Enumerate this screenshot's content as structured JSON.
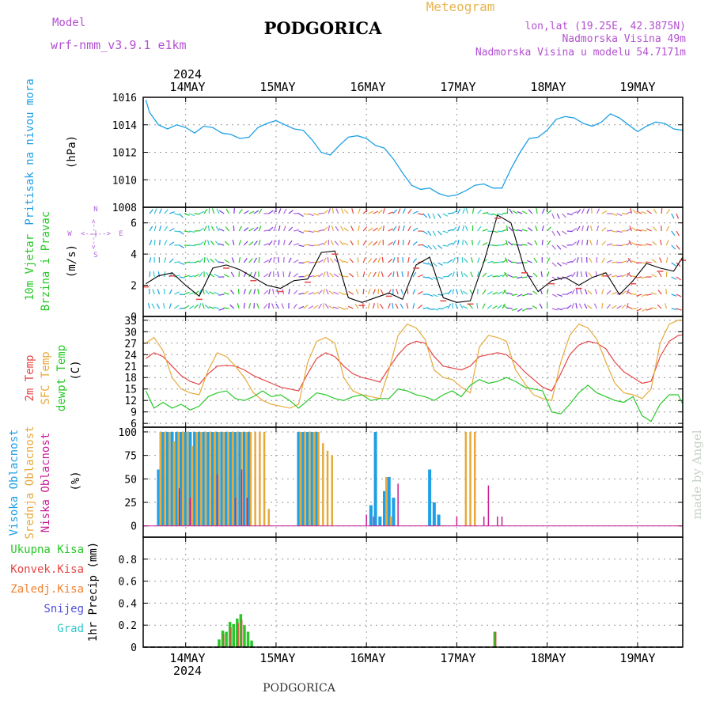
{
  "header": {
    "model_label": "Model",
    "model_name": "wrf-nmm_v3.9.1 e1km",
    "title": "PODGORICA",
    "subtitle": "Meteogram",
    "lonlat": "lon,lat (19.25E, 42.3875N)",
    "elevation": "Nadmorska Visina 49m",
    "model_elevation": "Nadmorska Visina u modelu 54.7171m",
    "year_top": "2024",
    "year_bottom": "2024",
    "footer_station": "PODGORICA",
    "credit": "made by Angel"
  },
  "colors": {
    "pressure": "#1ea0e6",
    "temp2m": "#e64646",
    "sfc": "#e6aa3c",
    "dewpt": "#28c828",
    "high_cloud": "#1ea0e6",
    "mid_cloud": "#e6aa3c",
    "low_cloud": "#c81e96",
    "total_precip": "#28c828",
    "conv_precip": "#e64646",
    "frozen_precip": "#f08232",
    "snow": "#5050dc",
    "hail": "#32c8c8",
    "wind_label": "#28c828",
    "wind_compass": "#b464dc",
    "header_purple": "#b450d2",
    "meteogram_orange": "#e6b450"
  },
  "chart_data": [
    {
      "type": "line",
      "panel": "pressure",
      "ylabel_left": "Pritisak na nivou mora",
      "unit": "(hPa)",
      "ylim": [
        1008,
        1016
      ],
      "yticks": [
        "1016",
        "1014",
        "1012",
        "1010",
        "1008"
      ],
      "grid": true,
      "x_ticks": [
        "14MAY",
        "15MAY",
        "16MAY",
        "17MAY",
        "18MAY",
        "19MAY"
      ],
      "series": [
        {
          "x": [
            13.56,
            13.6,
            13.7,
            13.8,
            13.9,
            14.0,
            14.1,
            14.2,
            14.3,
            14.4,
            14.5,
            14.6,
            14.7,
            14.8,
            14.9,
            15.0,
            15.1,
            15.2,
            15.3,
            15.4,
            15.5,
            15.6,
            15.7,
            15.8,
            15.9,
            16.0,
            16.1,
            16.2,
            16.3,
            16.4,
            16.5,
            16.6,
            16.7,
            16.8,
            16.9,
            17.0,
            17.1,
            17.2,
            17.3,
            17.4,
            17.5,
            17.6,
            17.7,
            17.8,
            17.9,
            18.0,
            18.1,
            18.2,
            18.3,
            18.4,
            18.5,
            18.6,
            18.7,
            18.8,
            18.9,
            19.0,
            19.1,
            19.2,
            19.3,
            19.4,
            19.5
          ],
          "values": [
            1015.8,
            1014.9,
            1014.0,
            1013.7,
            1014.0,
            1013.8,
            1013.4,
            1013.9,
            1013.8,
            1013.4,
            1013.3,
            1013.0,
            1013.1,
            1013.8,
            1014.1,
            1014.3,
            1014.0,
            1013.7,
            1013.6,
            1012.9,
            1012.0,
            1011.8,
            1012.5,
            1013.1,
            1013.2,
            1013.0,
            1012.5,
            1012.3,
            1011.5,
            1010.5,
            1009.6,
            1009.3,
            1009.4,
            1009.0,
            1008.8,
            1008.9,
            1009.2,
            1009.6,
            1009.7,
            1009.4,
            1009.4,
            1010.8,
            1012.0,
            1013.0,
            1013.1,
            1013.6,
            1014.4,
            1014.6,
            1014.5,
            1014.1,
            1013.9,
            1014.2,
            1014.8,
            1014.5,
            1014.0,
            1013.5,
            1013.9,
            1014.2,
            1014.1,
            1013.7,
            1013.6
          ]
        }
      ]
    },
    {
      "type": "line",
      "panel": "wind",
      "ylabel_left": [
        "10m Vjetar",
        "Brzina i Pravac"
      ],
      "unit": "(m/s)",
      "compass": {
        "n": "N",
        "e": "E",
        "w": "W",
        "s": "S",
        "arrows": "<--|-->"
      },
      "ylim": [
        0,
        7
      ],
      "yticks": [
        "6",
        "4",
        "2",
        "0"
      ],
      "grid": true,
      "series": [
        {
          "name": "speed",
          "x": [
            13.56,
            13.7,
            13.85,
            14.0,
            14.15,
            14.3,
            14.45,
            14.6,
            14.75,
            14.9,
            15.05,
            15.2,
            15.35,
            15.5,
            15.65,
            15.8,
            15.95,
            16.1,
            16.25,
            16.4,
            16.55,
            16.7,
            16.85,
            17.0,
            17.15,
            17.3,
            17.45,
            17.6,
            17.75,
            17.9,
            18.05,
            18.2,
            18.35,
            18.5,
            18.65,
            18.8,
            18.95,
            19.1,
            19.25,
            19.4,
            19.5
          ],
          "values": [
            2.1,
            2.6,
            2.8,
            2.0,
            1.3,
            3.1,
            3.3,
            3.0,
            2.5,
            2.0,
            1.8,
            2.3,
            2.4,
            4.1,
            4.2,
            1.2,
            0.9,
            1.2,
            1.5,
            1.1,
            3.3,
            3.8,
            1.2,
            0.9,
            1.0,
            3.5,
            6.5,
            6.0,
            3.0,
            1.6,
            2.3,
            2.5,
            2.0,
            2.5,
            2.8,
            1.4,
            2.3,
            3.4,
            3.1,
            2.9,
            3.8
          ]
        }
      ]
    },
    {
      "type": "line",
      "panel": "temperature",
      "ylabel_left": [
        "2m Temp",
        "SFC Temp",
        "dewpt Temp"
      ],
      "unit": "(C)",
      "ylim": [
        5,
        34
      ],
      "yticks": [
        "33",
        "30",
        "27",
        "24",
        "21",
        "18",
        "15",
        "12",
        "9",
        "6"
      ],
      "grid": true,
      "x": [
        13.56,
        13.65,
        13.75,
        13.85,
        13.95,
        14.05,
        14.15,
        14.25,
        14.35,
        14.45,
        14.55,
        14.65,
        14.75,
        14.85,
        14.95,
        15.05,
        15.15,
        15.25,
        15.35,
        15.45,
        15.55,
        15.65,
        15.75,
        15.85,
        15.95,
        16.05,
        16.15,
        16.25,
        16.35,
        16.45,
        16.55,
        16.65,
        16.75,
        16.85,
        16.95,
        17.05,
        17.15,
        17.25,
        17.35,
        17.45,
        17.55,
        17.65,
        17.75,
        17.85,
        17.95,
        18.05,
        18.15,
        18.25,
        18.35,
        18.45,
        18.55,
        18.65,
        18.75,
        18.85,
        18.95,
        19.05,
        19.15,
        19.25,
        19.35,
        19.45,
        19.5
      ],
      "series": [
        {
          "name": "2m Temp",
          "values": [
            23.0,
            24.5,
            23.5,
            21.0,
            18.5,
            17.0,
            16.2,
            19.0,
            21.0,
            21.2,
            21.0,
            20.0,
            18.5,
            17.5,
            16.5,
            15.5,
            15.0,
            14.5,
            19.0,
            23.0,
            24.5,
            23.5,
            21.0,
            19.0,
            18.0,
            17.5,
            16.8,
            20.5,
            24.0,
            26.5,
            27.5,
            27.0,
            23.5,
            21.0,
            20.5,
            20.0,
            21.0,
            23.5,
            24.0,
            24.5,
            24.0,
            22.0,
            19.5,
            17.5,
            15.5,
            14.5,
            19.0,
            24.0,
            26.5,
            27.5,
            27.0,
            25.5,
            22.0,
            19.5,
            18.0,
            16.5,
            17.0,
            23.5,
            27.5,
            29.0,
            29.2
          ]
        },
        {
          "name": "SFC Temp",
          "values": [
            27.0,
            28.5,
            25.0,
            18.0,
            15.0,
            14.0,
            13.5,
            20.0,
            24.5,
            23.5,
            21.0,
            18.0,
            14.0,
            12.0,
            11.0,
            10.5,
            10.0,
            11.0,
            22.0,
            27.5,
            28.5,
            27.0,
            18.0,
            14.5,
            13.5,
            13.0,
            12.5,
            20.0,
            29.0,
            32.0,
            31.0,
            28.0,
            20.0,
            18.0,
            17.5,
            15.5,
            14.0,
            26.0,
            29.0,
            28.5,
            27.5,
            20.0,
            16.5,
            13.5,
            12.5,
            12.0,
            22.0,
            29.0,
            32.0,
            31.0,
            28.0,
            22.0,
            16.5,
            14.0,
            13.5,
            12.5,
            15.0,
            27.0,
            32.0,
            33.0,
            33.0
          ]
        },
        {
          "name": "dewpt Temp",
          "values": [
            14.5,
            10.0,
            11.5,
            10.0,
            11.0,
            9.5,
            10.5,
            13.0,
            14.0,
            14.5,
            12.5,
            12.0,
            13.0,
            14.5,
            13.0,
            13.5,
            12.0,
            10.0,
            12.0,
            14.0,
            13.5,
            12.5,
            12.0,
            13.0,
            13.5,
            12.0,
            12.5,
            12.5,
            15.0,
            14.5,
            13.5,
            13.0,
            12.0,
            13.5,
            14.5,
            13.0,
            16.0,
            17.5,
            16.5,
            17.0,
            18.0,
            17.0,
            15.5,
            15.0,
            14.5,
            9.0,
            8.5,
            11.0,
            14.0,
            16.0,
            14.0,
            13.0,
            12.0,
            11.5,
            13.0,
            8.0,
            6.5,
            11.0,
            13.5,
            13.5,
            11.0
          ]
        }
      ]
    },
    {
      "type": "bar",
      "panel": "cloud",
      "ylabel_left": [
        "Visoka Oblacnost",
        "Srednja Oblacnost",
        "Niska Oblacnost"
      ],
      "unit": "(%)",
      "ylim": [
        0,
        100
      ],
      "yticks": [
        "100",
        "75",
        "50",
        "25",
        "0"
      ],
      "grid": true,
      "series": [
        {
          "name": "Visoka Oblacnost",
          "x": [
            13.7,
            13.75,
            13.8,
            13.85,
            13.9,
            13.95,
            14.0,
            14.05,
            14.1,
            14.15,
            14.2,
            14.25,
            14.3,
            14.35,
            14.4,
            14.45,
            14.5,
            14.55,
            14.6,
            14.65,
            14.7,
            15.25,
            15.3,
            15.35,
            15.4,
            15.45,
            16.05,
            16.1,
            16.15,
            16.2,
            16.25,
            16.3,
            16.7,
            16.75,
            16.8
          ],
          "values": [
            60,
            100,
            100,
            100,
            100,
            100,
            100,
            100,
            100,
            100,
            100,
            100,
            100,
            100,
            100,
            100,
            100,
            100,
            100,
            100,
            100,
            100,
            100,
            100,
            100,
            100,
            22,
            100,
            10,
            37,
            52,
            30,
            60,
            25,
            12
          ]
        },
        {
          "name": "Srednja Oblacnost",
          "x": [
            13.72,
            13.77,
            13.82,
            13.87,
            13.92,
            13.97,
            14.02,
            14.07,
            14.12,
            14.17,
            14.22,
            14.27,
            14.32,
            14.37,
            14.42,
            14.47,
            14.52,
            14.57,
            14.62,
            14.67,
            14.72,
            14.77,
            14.82,
            14.87,
            14.92,
            15.27,
            15.32,
            15.37,
            15.42,
            15.47,
            15.52,
            15.57,
            15.62,
            16.22,
            16.27,
            17.1,
            17.15,
            17.2
          ],
          "values": [
            100,
            100,
            100,
            90,
            100,
            100,
            100,
            85,
            100,
            100,
            100,
            100,
            100,
            100,
            100,
            100,
            100,
            100,
            100,
            100,
            100,
            100,
            100,
            100,
            18,
            100,
            100,
            100,
            100,
            100,
            88,
            80,
            75,
            52,
            10,
            100,
            100,
            100
          ]
        },
        {
          "name": "Niska Oblacnost",
          "x": [
            13.93,
            14.05,
            14.35,
            14.55,
            14.62,
            14.68,
            16.0,
            16.08,
            16.35,
            17.0,
            17.3,
            17.35,
            17.45,
            17.5
          ],
          "values": [
            40,
            30,
            55,
            30,
            60,
            30,
            12,
            10,
            45,
            10,
            10,
            43,
            10,
            10
          ]
        }
      ]
    },
    {
      "type": "bar",
      "panel": "precip",
      "ylabel_left": [
        "Ukupna Kisa",
        "Konvek.Kisa",
        "Zaledj.Kisa",
        "Snijeg",
        "Grad"
      ],
      "unit": "1hr Precip (mm)",
      "ylim": [
        0,
        1.0
      ],
      "yticks": [
        "0.8",
        "0.6",
        "0.4",
        "0.2",
        "0"
      ],
      "grid": true,
      "x_ticks": [
        "14MAY",
        "15MAY",
        "16MAY",
        "17MAY",
        "18MAY",
        "19MAY"
      ],
      "series": [
        {
          "name": "Ukupna Kisa",
          "x": [
            14.37,
            14.41,
            14.45,
            14.49,
            14.53,
            14.57,
            14.61,
            14.65,
            14.69,
            14.73,
            17.42
          ],
          "values": [
            0.07,
            0.15,
            0.14,
            0.23,
            0.21,
            0.26,
            0.3,
            0.2,
            0.14,
            0.06,
            0.14
          ]
        },
        {
          "name": "Konvek.Kisa",
          "x": [
            14.42,
            14.5,
            14.58,
            14.62,
            17.43
          ],
          "values": [
            0.12,
            0.18,
            0.22,
            0.25,
            0.14
          ]
        }
      ]
    }
  ]
}
